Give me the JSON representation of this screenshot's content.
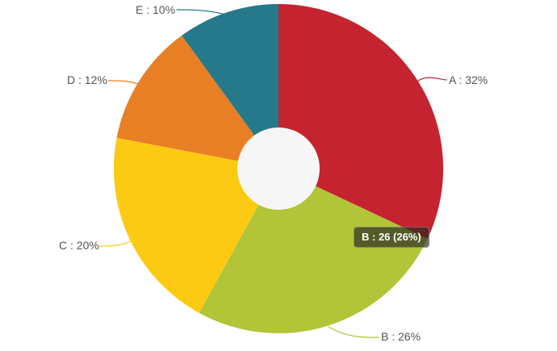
{
  "chart_data": {
    "type": "pie",
    "variant": "donut",
    "title": "",
    "categories": [
      "A",
      "B",
      "C",
      "D",
      "E"
    ],
    "values": [
      32,
      26,
      20,
      12,
      10
    ],
    "total": 100,
    "unit": "%",
    "direction": "clockwise",
    "start_angle_deg": 0,
    "colors": [
      "#c4232f",
      "#b2c437",
      "#fcca12",
      "#e87f25",
      "#26798a"
    ],
    "hole_color": "#f6f6f6",
    "legend_position": "none",
    "labels": [
      "A : 32%",
      "B : 26%",
      "C : 20%",
      "D : 12%",
      "E : 10%"
    ]
  },
  "tooltip": {
    "text": "B : 26 (26%)"
  },
  "style": {
    "label_color": "#545454",
    "background": "#ffffff"
  }
}
